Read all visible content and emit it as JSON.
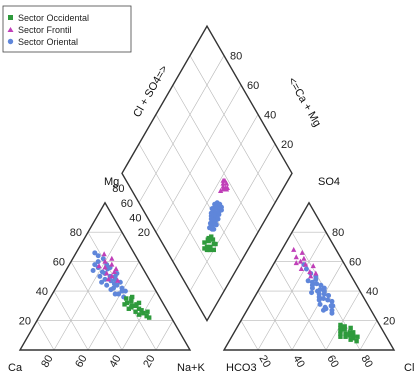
{
  "chart_data": {
    "type": "scatter",
    "subtype": "piper-trilinear",
    "title": "",
    "legend": {
      "placement": "top-left",
      "entries": [
        {
          "label": "Sector Occidental",
          "color": "#2e9a3c",
          "marker": "square"
        },
        {
          "label": "Sector Frontil",
          "color": "#c03fb8",
          "marker": "triangle"
        },
        {
          "label": "Sector Oriental",
          "color": "#5f86da",
          "marker": "circle"
        }
      ]
    },
    "cation_triangle": {
      "vertex_labels": {
        "bottom_left": "Ca",
        "bottom_right": "Na+K",
        "top": "Mg"
      },
      "left_ticks": [
        "20",
        "40",
        "60",
        "80"
      ],
      "bottom_ticks": [
        "80",
        "60",
        "40",
        "20"
      ]
    },
    "anion_triangle": {
      "vertex_labels": {
        "bottom_left": "HCO3",
        "bottom_right": "Cl",
        "top": "SO4"
      },
      "right_ticks": [
        "80",
        "60",
        "40",
        "20"
      ],
      "bottom_ticks": [
        "20",
        "40",
        "60",
        "80"
      ]
    },
    "diamond": {
      "left_axis_label": "Cl + SO4=>",
      "right_axis_label": "<=Ca + Mg",
      "left_ticks": [
        "20",
        "40",
        "60",
        "80"
      ],
      "right_ticks": [
        "80",
        "60",
        "40",
        "20"
      ]
    },
    "grid": true,
    "series": [
      {
        "name": "Sector Occidental",
        "cation": [
          [
            16,
            28,
            56
          ],
          [
            17,
            30,
            53
          ],
          [
            15,
            25,
            60
          ],
          [
            14,
            23,
            63
          ],
          [
            18,
            33,
            49
          ],
          [
            19,
            26,
            55
          ],
          [
            16,
            31,
            53
          ],
          [
            20,
            29,
            51
          ],
          [
            13,
            22,
            65
          ],
          [
            17,
            35,
            48
          ],
          [
            21,
            32,
            47
          ],
          [
            15,
            27,
            58
          ],
          [
            18,
            24,
            58
          ],
          [
            19,
            30,
            51
          ],
          [
            16,
            36,
            48
          ],
          [
            22,
            28,
            50
          ],
          [
            14,
            32,
            54
          ],
          [
            20,
            35,
            45
          ],
          [
            12,
            26,
            62
          ],
          [
            23,
            31,
            46
          ]
        ],
        "anion": [
          [
            20,
            8,
            72
          ],
          [
            21,
            10,
            69
          ],
          [
            18,
            12,
            70
          ],
          [
            22,
            14,
            64
          ],
          [
            24,
            9,
            67
          ],
          [
            19,
            6,
            75
          ],
          [
            23,
            11,
            66
          ],
          [
            25,
            13,
            62
          ],
          [
            17,
            9,
            74
          ],
          [
            21,
            16,
            63
          ],
          [
            26,
            11,
            63
          ],
          [
            20,
            12,
            68
          ],
          [
            24,
            15,
            61
          ],
          [
            22,
            7,
            71
          ],
          [
            18,
            15,
            67
          ],
          [
            27,
            9,
            64
          ],
          [
            23,
            17,
            60
          ],
          [
            19,
            10,
            71
          ]
        ],
        "diamond": [
          [
            21,
            31
          ],
          [
            22,
            30
          ],
          [
            24,
            26
          ],
          [
            25,
            25
          ],
          [
            26,
            31
          ],
          [
            22,
            26
          ],
          [
            23,
            25
          ],
          [
            27,
            28
          ],
          [
            24,
            24
          ],
          [
            28,
            25
          ],
          [
            20,
            28
          ],
          [
            24,
            31
          ],
          [
            26,
            23
          ],
          [
            27,
            29
          ],
          [
            23,
            27
          ],
          [
            26,
            28
          ]
        ]
      },
      {
        "name": "Sector Frontil",
        "cation": [
          [
            16,
            55,
            29
          ],
          [
            18,
            53,
            29
          ],
          [
            24,
            48,
            28
          ],
          [
            20,
            60,
            20
          ],
          [
            17,
            58,
            25
          ],
          [
            21,
            50,
            29
          ],
          [
            15,
            62,
            23
          ],
          [
            22,
            56,
            22
          ],
          [
            19,
            47,
            34
          ],
          [
            23,
            52,
            25
          ],
          [
            18,
            65,
            17
          ],
          [
            25,
            57,
            18
          ]
        ],
        "anion": [
          [
            20,
            52,
            28
          ],
          [
            23,
            58,
            19
          ],
          [
            25,
            60,
            15
          ],
          [
            22,
            62,
            16
          ],
          [
            27,
            55,
            18
          ],
          [
            21,
            66,
            13
          ],
          [
            24,
            50,
            26
          ],
          [
            26,
            63,
            11
          ],
          [
            19,
            57,
            24
          ],
          [
            28,
            59,
            13
          ],
          [
            23,
            53,
            24
          ],
          [
            25,
            68,
            7
          ]
        ],
        "diamond": [
          [
            34,
            56
          ],
          [
            33,
            57
          ],
          [
            36,
            55
          ],
          [
            35,
            58
          ],
          [
            37,
            56
          ],
          [
            36,
            52
          ],
          [
            38,
            57
          ],
          [
            35,
            54
          ],
          [
            33,
            56
          ],
          [
            37,
            58
          ]
        ]
      },
      {
        "name": "Sector Oriental",
        "cation": [
          [
            20,
            40,
            40
          ],
          [
            22,
            45,
            33
          ],
          [
            19,
            50,
            31
          ],
          [
            24,
            42,
            34
          ],
          [
            21,
            55,
            24
          ],
          [
            26,
            48,
            26
          ],
          [
            18,
            46,
            36
          ],
          [
            23,
            38,
            39
          ],
          [
            25,
            53,
            22
          ],
          [
            20,
            58,
            22
          ],
          [
            27,
            44,
            29
          ],
          [
            22,
            50,
            28
          ],
          [
            19,
            42,
            39
          ],
          [
            24,
            60,
            16
          ],
          [
            28,
            50,
            22
          ],
          [
            17,
            52,
            31
          ],
          [
            21,
            36,
            43
          ],
          [
            26,
            56,
            18
          ],
          [
            23,
            47,
            30
          ],
          [
            20,
            62,
            18
          ],
          [
            29,
            46,
            25
          ],
          [
            18,
            40,
            42
          ],
          [
            25,
            38,
            37
          ],
          [
            22,
            64,
            14
          ],
          [
            27,
            58,
            15
          ],
          [
            21,
            44,
            35
          ],
          [
            24,
            52,
            24
          ],
          [
            19,
            56,
            25
          ],
          [
            26,
            41,
            33
          ],
          [
            23,
            66,
            11
          ],
          [
            30,
            54,
            16
          ],
          [
            20,
            48,
            32
          ]
        ],
        "anion": [
          [
            22,
            30,
            48
          ],
          [
            24,
            35,
            41
          ],
          [
            21,
            40,
            39
          ],
          [
            26,
            28,
            46
          ],
          [
            23,
            45,
            32
          ],
          [
            25,
            38,
            37
          ],
          [
            20,
            33,
            47
          ],
          [
            27,
            42,
            31
          ],
          [
            22,
            48,
            30
          ],
          [
            24,
            25,
            51
          ],
          [
            26,
            36,
            38
          ],
          [
            21,
            44,
            35
          ],
          [
            28,
            31,
            41
          ],
          [
            23,
            52,
            25
          ],
          [
            25,
            40,
            35
          ],
          [
            20,
            37,
            43
          ],
          [
            27,
            47,
            26
          ],
          [
            22,
            34,
            44
          ],
          [
            24,
            55,
            21
          ],
          [
            26,
            29,
            45
          ],
          [
            29,
            39,
            32
          ],
          [
            21,
            50,
            29
          ],
          [
            23,
            27,
            50
          ],
          [
            25,
            46,
            29
          ],
          [
            20,
            42,
            38
          ],
          [
            27,
            34,
            39
          ],
          [
            24,
            58,
            18
          ],
          [
            22,
            38,
            40
          ],
          [
            26,
            44,
            30
          ],
          [
            28,
            27,
            45
          ],
          [
            23,
            41,
            36
          ],
          [
            21,
            30,
            49
          ]
        ],
        "diamond": [
          [
            27,
            35
          ],
          [
            28,
            38
          ],
          [
            29,
            36
          ],
          [
            30,
            40
          ],
          [
            31,
            42
          ],
          [
            32,
            44
          ],
          [
            29,
            39
          ],
          [
            30,
            36
          ],
          [
            31,
            38
          ],
          [
            33,
            41
          ],
          [
            34,
            43
          ],
          [
            30,
            33
          ],
          [
            32,
            37
          ],
          [
            28,
            41
          ],
          [
            33,
            45
          ],
          [
            35,
            44
          ],
          [
            31,
            35
          ],
          [
            29,
            43
          ],
          [
            32,
            40
          ],
          [
            34,
            46
          ],
          [
            27,
            38
          ],
          [
            30,
            44
          ],
          [
            33,
            38
          ],
          [
            28,
            34
          ],
          [
            31,
            46
          ],
          [
            35,
            41
          ],
          [
            32,
            47
          ],
          [
            29,
            46
          ],
          [
            34,
            39
          ],
          [
            30,
            47
          ]
        ]
      }
    ]
  }
}
